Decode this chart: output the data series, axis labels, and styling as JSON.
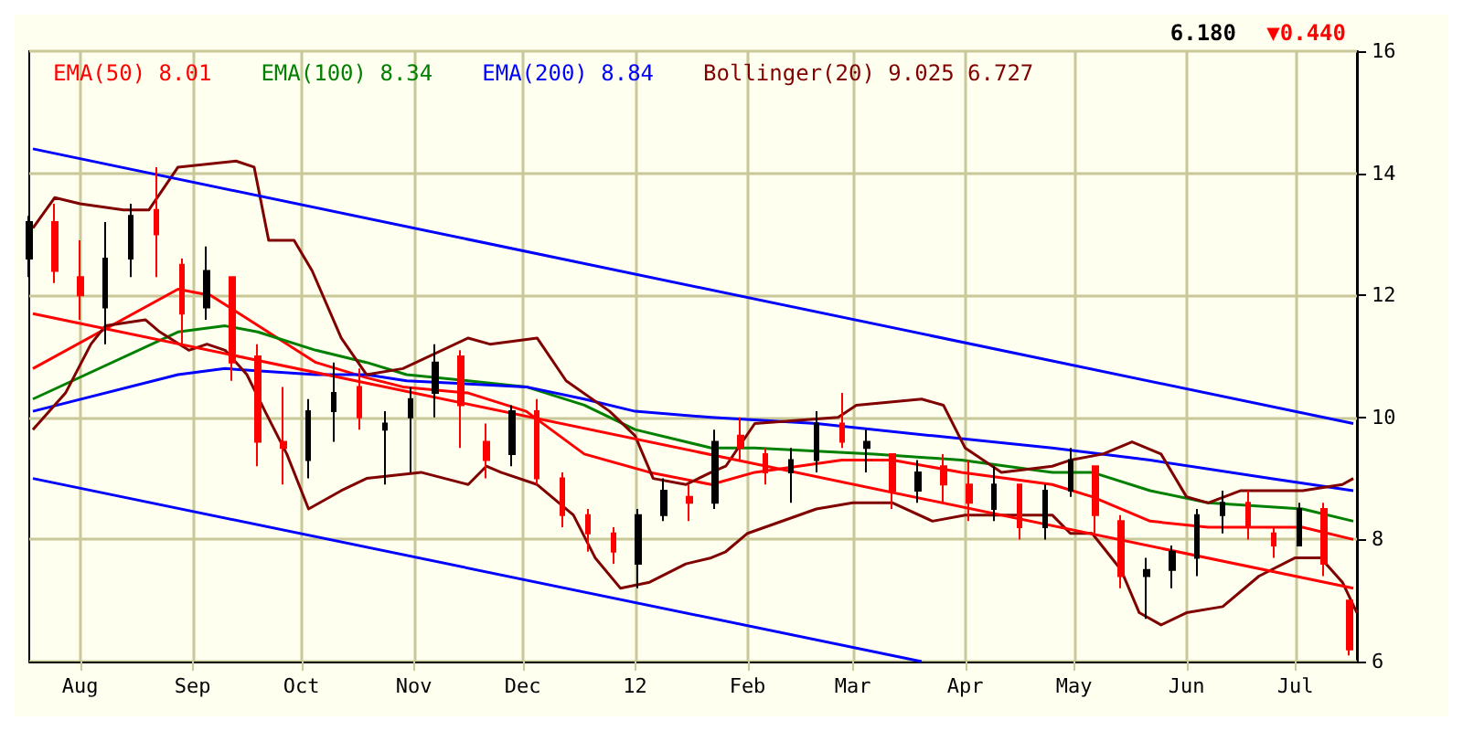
{
  "chart_data": {
    "type": "candlestick",
    "annotations": [
      "6.180",
      "▼0.440"
    ],
    "x": [
      "2011-07-18",
      "2011-07-25",
      "2011-08-01",
      "2011-08-08",
      "2011-08-15",
      "2011-08-22",
      "2011-08-29",
      "2011-09-05",
      "2011-09-12",
      "2011-09-19",
      "2011-09-26",
      "2011-10-03",
      "2011-10-10",
      "2011-10-17",
      "2011-10-24",
      "2011-10-31",
      "2011-11-07",
      "2011-11-14",
      "2011-11-21",
      "2011-11-28",
      "2011-12-05",
      "2011-12-12",
      "2011-12-19",
      "2011-12-26",
      "2012-01-02",
      "2012-01-09",
      "2012-01-16",
      "2012-01-23",
      "2012-01-30",
      "2012-02-06",
      "2012-02-13",
      "2012-02-20",
      "2012-02-27",
      "2012-03-05",
      "2012-03-12",
      "2012-03-19",
      "2012-03-26",
      "2012-04-02",
      "2012-04-09",
      "2012-04-16",
      "2012-04-23",
      "2012-04-30",
      "2012-05-07",
      "2012-05-14",
      "2012-05-21",
      "2012-05-28",
      "2012-06-04",
      "2012-06-11",
      "2012-06-18",
      "2012-06-25",
      "2012-07-02",
      "2012-07-09",
      "2012-07-16"
    ],
    "ohlc": [
      [
        12.6,
        13.3,
        12.3,
        13.2
      ],
      [
        13.2,
        13.5,
        12.2,
        12.4
      ],
      [
        12.3,
        12.9,
        11.6,
        12.0
      ],
      [
        11.8,
        13.2,
        11.2,
        12.6
      ],
      [
        12.6,
        13.5,
        12.3,
        13.3
      ],
      [
        13.4,
        14.1,
        12.3,
        13.0
      ],
      [
        12.5,
        12.6,
        11.2,
        11.7
      ],
      [
        11.8,
        12.8,
        11.6,
        12.4
      ],
      [
        12.3,
        12.3,
        10.6,
        10.9
      ],
      [
        11.0,
        11.2,
        9.2,
        9.6
      ],
      [
        9.6,
        10.5,
        8.9,
        9.5
      ],
      [
        9.3,
        10.3,
        9.0,
        10.1
      ],
      [
        10.1,
        10.9,
        9.6,
        10.4
      ],
      [
        10.5,
        10.8,
        9.8,
        10.0
      ],
      [
        9.8,
        10.1,
        8.9,
        9.9
      ],
      [
        10.0,
        10.5,
        9.1,
        10.3
      ],
      [
        10.4,
        11.2,
        10.0,
        10.9
      ],
      [
        11.0,
        11.1,
        9.5,
        10.2
      ],
      [
        9.6,
        9.9,
        9.0,
        9.3
      ],
      [
        9.4,
        10.2,
        9.2,
        10.1
      ],
      [
        10.1,
        10.3,
        8.9,
        9.0
      ],
      [
        9.0,
        9.1,
        8.2,
        8.4
      ],
      [
        8.4,
        8.5,
        7.8,
        8.1
      ],
      [
        8.1,
        8.2,
        7.6,
        7.8
      ],
      [
        7.6,
        8.5,
        7.2,
        8.4
      ],
      [
        8.4,
        9.0,
        8.3,
        8.8
      ],
      [
        8.7,
        8.9,
        8.3,
        8.6
      ],
      [
        8.6,
        9.8,
        8.5,
        9.6
      ],
      [
        9.7,
        10.0,
        9.3,
        9.5
      ],
      [
        9.4,
        9.5,
        8.9,
        9.1
      ],
      [
        9.1,
        9.5,
        8.6,
        9.3
      ],
      [
        9.3,
        10.1,
        9.1,
        9.9
      ],
      [
        9.9,
        10.4,
        9.5,
        9.6
      ],
      [
        9.5,
        9.8,
        9.1,
        9.6
      ],
      [
        9.4,
        9.4,
        8.5,
        8.8
      ],
      [
        8.8,
        9.3,
        8.6,
        9.1
      ],
      [
        9.2,
        9.4,
        8.6,
        8.9
      ],
      [
        8.9,
        9.3,
        8.3,
        8.6
      ],
      [
        8.5,
        9.2,
        8.3,
        8.9
      ],
      [
        8.9,
        8.9,
        8.0,
        8.2
      ],
      [
        8.2,
        8.9,
        8.0,
        8.8
      ],
      [
        8.8,
        9.5,
        8.7,
        9.3
      ],
      [
        9.2,
        9.2,
        8.1,
        8.4
      ],
      [
        8.3,
        8.4,
        7.2,
        7.4
      ],
      [
        7.4,
        7.7,
        6.7,
        7.5
      ],
      [
        7.5,
        7.9,
        7.2,
        7.8
      ],
      [
        7.7,
        8.5,
        7.4,
        8.4
      ],
      [
        8.4,
        8.8,
        8.1,
        8.6
      ],
      [
        8.6,
        8.8,
        8.0,
        8.2
      ],
      [
        8.1,
        8.2,
        7.7,
        7.9
      ],
      [
        7.9,
        8.6,
        7.9,
        8.5
      ],
      [
        8.5,
        8.6,
        7.4,
        7.6
      ],
      [
        7.0,
        7.0,
        6.1,
        6.2
      ]
    ],
    "series": [
      {
        "type": "line",
        "name": "EMA(50) 8.01",
        "color": "#ff0000",
        "x": [
          "2011-07-19",
          "2011-08-28",
          "2011-09-06",
          "2011-10-05",
          "2011-10-19",
          "2011-10-29",
          "2011-11-16",
          "2011-12-02",
          "2011-12-18",
          "2012-01-05",
          "2012-01-22",
          "2012-02-03",
          "2012-02-27",
          "2012-03-12",
          "2012-03-31",
          "2012-04-25",
          "2012-05-06",
          "2012-05-22",
          "2012-06-07",
          "2012-07-03",
          "2012-07-17"
        ],
        "values": [
          10.8,
          12.1,
          12.0,
          10.9,
          10.65,
          10.5,
          10.4,
          10.1,
          9.4,
          9.1,
          8.9,
          9.1,
          9.3,
          9.3,
          9.1,
          8.9,
          8.7,
          8.3,
          8.2,
          8.2,
          8.0
        ]
      },
      {
        "type": "line",
        "name": "EMA(100) 8.34",
        "color": "#008000",
        "x": [
          "2011-07-19",
          "2011-08-28",
          "2011-09-10",
          "2011-09-19",
          "2011-10-05",
          "2011-10-19",
          "2011-10-30",
          "2011-11-16",
          "2011-12-02",
          "2011-12-18",
          "2012-01-01",
          "2012-01-22",
          "2012-02-03",
          "2012-03-07",
          "2012-03-31",
          "2012-04-25",
          "2012-05-06",
          "2012-05-22",
          "2012-06-07",
          "2012-07-03",
          "2012-07-17"
        ],
        "values": [
          10.3,
          11.4,
          11.5,
          11.4,
          11.1,
          10.9,
          10.7,
          10.6,
          10.5,
          10.2,
          9.8,
          9.5,
          9.5,
          9.4,
          9.3,
          9.1,
          9.1,
          8.8,
          8.6,
          8.5,
          8.3
        ]
      },
      {
        "type": "line",
        "name": "EMA(200) 8.84",
        "color": "#0000ff",
        "x": [
          "2011-07-19",
          "2011-08-28",
          "2011-09-10",
          "2011-10-05",
          "2011-10-19",
          "2011-10-30",
          "2011-12-02",
          "2011-12-18",
          "2012-01-01",
          "2012-01-22",
          "2012-02-20",
          "2012-03-23",
          "2012-04-25",
          "2012-05-22",
          "2012-06-24",
          "2012-07-17"
        ],
        "values": [
          10.1,
          10.7,
          10.8,
          10.7,
          10.7,
          10.6,
          10.5,
          10.3,
          10.1,
          10.0,
          9.9,
          9.7,
          9.5,
          9.3,
          9.0,
          8.8
        ]
      },
      {
        "type": "line",
        "name": "Bollinger(20) 9.025 6.727",
        "color": "#800000",
        "x": [
          "2011-07-19",
          "2011-07-25",
          "2011-08-01",
          "2011-08-13",
          "2011-08-20",
          "2011-08-28",
          "2011-09-13",
          "2011-09-18",
          "2011-09-22",
          "2011-09-29",
          "2011-10-04",
          "2011-10-12",
          "2011-10-19",
          "2011-10-29",
          "2011-11-16",
          "2011-11-22",
          "2011-12-05",
          "2011-12-13",
          "2011-12-25",
          "2012-01-01",
          "2012-01-06",
          "2012-01-15",
          "2012-01-22",
          "2012-01-26",
          "2012-02-03",
          "2012-02-26",
          "2012-03-02",
          "2012-03-20",
          "2012-03-26",
          "2012-04-01",
          "2012-04-11",
          "2012-04-25",
          "2012-04-30",
          "2012-05-09",
          "2012-05-17",
          "2012-05-25",
          "2012-06-01",
          "2012-06-07",
          "2012-06-16",
          "2012-07-03",
          "2012-07-14",
          "2012-07-17"
        ],
        "values": [
          13.1,
          13.6,
          13.5,
          13.4,
          13.4,
          14.1,
          14.2,
          14.1,
          12.9,
          12.9,
          12.4,
          11.3,
          10.7,
          10.8,
          11.3,
          11.2,
          11.3,
          10.6,
          10.1,
          9.7,
          9.0,
          8.9,
          9.1,
          9.2,
          9.9,
          10.0,
          10.2,
          10.3,
          10.2,
          9.5,
          9.1,
          9.2,
          9.3,
          9.4,
          9.6,
          9.4,
          8.7,
          8.6,
          8.8,
          8.8,
          8.9,
          9.0
        ]
      },
      {
        "type": "line",
        "color": "#800000",
        "x": [
          "2011-07-19",
          "2011-07-28",
          "2011-08-04",
          "2011-08-08",
          "2011-08-19",
          "2011-08-23",
          "2011-08-31",
          "2011-09-05",
          "2011-09-10",
          "2011-09-16",
          "2011-09-21",
          "2011-09-27",
          "2011-10-03",
          "2011-10-12",
          "2011-10-19",
          "2011-11-03",
          "2011-11-16",
          "2011-11-21",
          "2011-11-25",
          "2011-12-05",
          "2011-12-15",
          "2011-12-21",
          "2011-12-28",
          "2012-01-05",
          "2012-01-15",
          "2012-01-22",
          "2012-01-26",
          "2012-02-01",
          "2012-02-20",
          "2012-03-01",
          "2012-03-12",
          "2012-03-23",
          "2012-04-01",
          "2012-04-25",
          "2012-04-30",
          "2012-05-06",
          "2012-05-14",
          "2012-05-19",
          "2012-05-25",
          "2012-06-01",
          "2012-06-11",
          "2012-06-21",
          "2012-07-01",
          "2012-07-08",
          "2012-07-14",
          "2012-07-18"
        ],
        "values": [
          9.8,
          10.4,
          11.2,
          11.5,
          11.6,
          11.4,
          11.1,
          11.2,
          11.1,
          10.7,
          10.1,
          9.4,
          8.5,
          8.8,
          9.0,
          9.1,
          8.9,
          9.2,
          9.1,
          8.9,
          8.4,
          7.7,
          7.2,
          7.3,
          7.6,
          7.7,
          7.8,
          8.1,
          8.5,
          8.6,
          8.6,
          8.3,
          8.4,
          8.4,
          8.1,
          8.1,
          7.5,
          6.8,
          6.6,
          6.8,
          6.9,
          7.4,
          7.7,
          7.7,
          7.3,
          6.8
        ]
      },
      {
        "type": "line",
        "color": "#0000ff",
        "x": [
          "2011-07-19",
          "2012-07-17"
        ],
        "values": [
          14.4,
          9.9
        ]
      },
      {
        "type": "line",
        "color": "#ff0000",
        "x": [
          "2011-07-19",
          "2012-07-17"
        ],
        "values": [
          11.7,
          7.2
        ]
      },
      {
        "type": "line",
        "color": "#0000ff",
        "x": [
          "2011-07-19",
          "2012-03-20"
        ],
        "values": [
          9.0,
          6.0
        ]
      }
    ],
    "xlim": [
      "2011-07-18",
      "2012-07-18"
    ],
    "xticks": [
      {
        "value": "2011-08-01",
        "label": "Aug"
      },
      {
        "value": "2011-09-01",
        "label": "Sep"
      },
      {
        "value": "2011-10-01",
        "label": "Oct"
      },
      {
        "value": "2011-11-01",
        "label": "Nov"
      },
      {
        "value": "2011-12-01",
        "label": "Dec"
      },
      {
        "value": "2012-01-01",
        "label": "12"
      },
      {
        "value": "2012-02-01",
        "label": "Feb"
      },
      {
        "value": "2012-03-01",
        "label": "Mar"
      },
      {
        "value": "2012-04-01",
        "label": "Apr"
      },
      {
        "value": "2012-05-01",
        "label": "May"
      },
      {
        "value": "2012-06-01",
        "label": "Jun"
      },
      {
        "value": "2012-07-01",
        "label": "Jul"
      }
    ],
    "ylim": [
      6,
      16
    ],
    "yticks": [
      6,
      8,
      10,
      12,
      14,
      16
    ],
    "grid": true,
    "legend": "top left"
  }
}
